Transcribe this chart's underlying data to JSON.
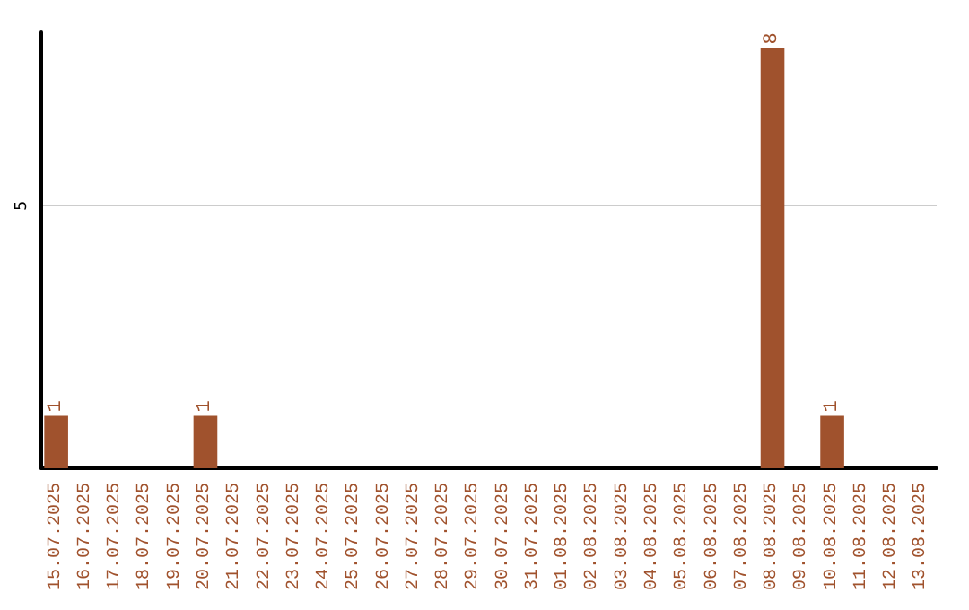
{
  "chart_data": {
    "type": "bar",
    "categories": [
      "15.07.2025",
      "16.07.2025",
      "17.07.2025",
      "18.07.2025",
      "19.07.2025",
      "20.07.2025",
      "21.07.2025",
      "22.07.2025",
      "23.07.2025",
      "24.07.2025",
      "25.07.2025",
      "26.07.2025",
      "27.07.2025",
      "28.07.2025",
      "29.07.2025",
      "30.07.2025",
      "31.07.2025",
      "01.08.2025",
      "02.08.2025",
      "03.08.2025",
      "04.08.2025",
      "05.08.2025",
      "06.08.2025",
      "07.08.2025",
      "08.08.2025",
      "09.08.2025",
      "10.08.2025",
      "11.08.2025",
      "12.08.2025",
      "13.08.2025"
    ],
    "values": [
      1,
      0,
      0,
      0,
      0,
      1,
      0,
      0,
      0,
      0,
      0,
      0,
      0,
      0,
      0,
      0,
      0,
      0,
      0,
      0,
      0,
      0,
      0,
      0,
      8,
      0,
      1,
      0,
      0,
      0
    ],
    "value_labels": [
      "1",
      null,
      null,
      null,
      null,
      "1",
      null,
      null,
      null,
      null,
      null,
      null,
      null,
      null,
      null,
      null,
      null,
      null,
      null,
      null,
      null,
      null,
      null,
      null,
      "8",
      null,
      "1",
      null,
      null,
      null
    ],
    "color": "#a0522d",
    "ylim": [
      0,
      8.3
    ],
    "yticks": [
      5
    ],
    "grid": "y"
  }
}
